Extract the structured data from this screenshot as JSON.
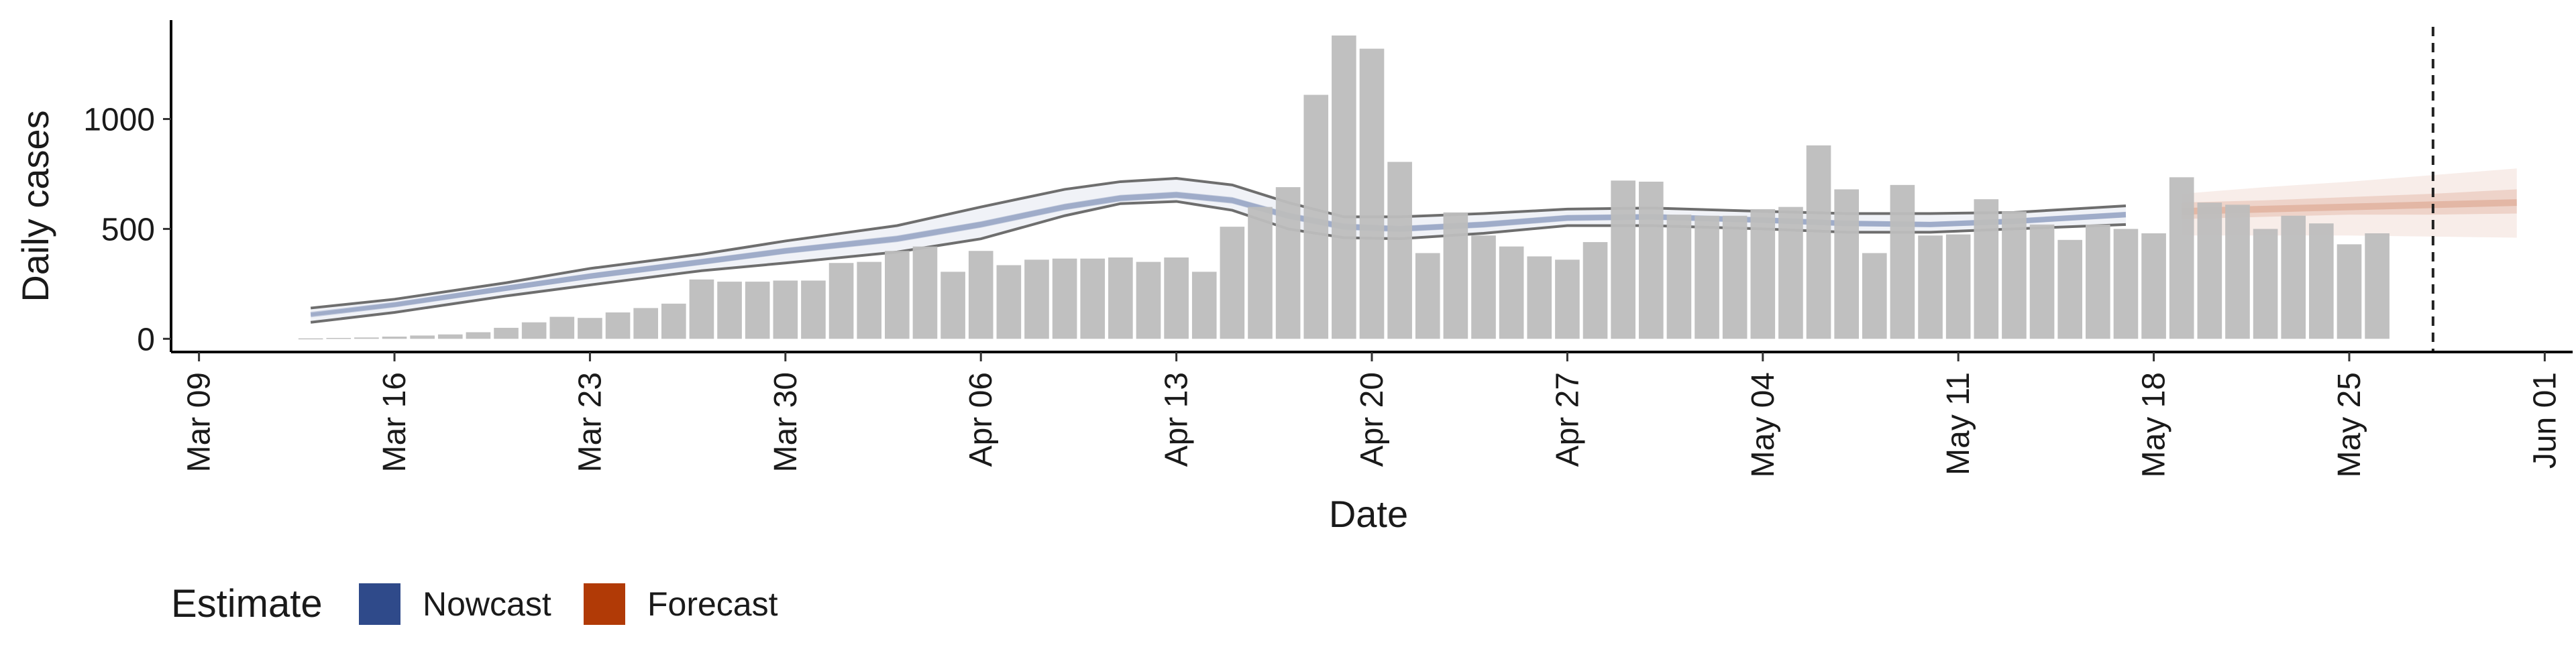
{
  "chart_data": {
    "type": "bar",
    "xlabel": "Date",
    "ylabel": "Daily cases",
    "x_ticks": [
      "Mar 09",
      "Mar 16",
      "Mar 23",
      "Mar 30",
      "Apr 06",
      "Apr 13",
      "Apr 20",
      "Apr 27",
      "May 04",
      "May 11",
      "May 18",
      "May 25",
      "Jun 01"
    ],
    "y_ticks": [
      "0",
      "500",
      "1000"
    ],
    "ylim": [
      -60,
      1450
    ],
    "xlim": [
      "2020-03-08",
      "2020-06-02"
    ],
    "grid": false,
    "legend_position": "bottom-left",
    "legend": {
      "title": "Estimate",
      "entries": [
        {
          "label": "Nowcast",
          "color": "#2f4a8a"
        },
        {
          "label": "Forecast",
          "color": "#b13a06"
        }
      ]
    },
    "colors": {
      "bar": "#bdbdbd",
      "nowcast": "#2f4a8a",
      "forecast": "#b13a06",
      "outer_line": "#6e6e6e",
      "cutoff_line": "#222222"
    },
    "cases": {
      "start_date": "2020-03-13",
      "values": [
        2,
        4,
        6,
        10,
        15,
        20,
        30,
        50,
        75,
        100,
        95,
        120,
        140,
        160,
        270,
        260,
        260,
        265,
        265,
        345,
        350,
        400,
        420,
        305,
        400,
        335,
        360,
        365,
        365,
        370,
        350,
        370,
        305,
        510,
        600,
        690,
        1110,
        1380,
        1320,
        805,
        390,
        575,
        470,
        420,
        375,
        360,
        440,
        720,
        715,
        565,
        560,
        560,
        590,
        600,
        880,
        680,
        390,
        700,
        470,
        475,
        635,
        580,
        520,
        450,
        520,
        500,
        480,
        735,
        620,
        610,
        500,
        560,
        525,
        430,
        480
      ],
      "bar_color": "#bdbdbd"
    },
    "nowcast": {
      "dates": [
        "2020-03-13",
        "2020-03-16",
        "2020-03-20",
        "2020-03-23",
        "2020-03-27",
        "2020-03-30",
        "2020-04-03",
        "2020-04-06",
        "2020-04-09",
        "2020-04-11",
        "2020-04-13",
        "2020-04-15",
        "2020-04-17",
        "2020-04-19",
        "2020-04-21",
        "2020-04-24",
        "2020-04-27",
        "2020-04-30",
        "2020-05-04",
        "2020-05-07",
        "2020-05-10",
        "2020-05-13",
        "2020-05-17"
      ],
      "median": [
        110,
        155,
        230,
        285,
        350,
        400,
        455,
        520,
        600,
        640,
        655,
        630,
        560,
        510,
        500,
        520,
        550,
        555,
        540,
        525,
        520,
        535,
        565
      ],
      "inner_lower": [
        102,
        145,
        218,
        272,
        336,
        386,
        440,
        505,
        585,
        625,
        640,
        615,
        545,
        495,
        486,
        506,
        536,
        542,
        527,
        512,
        508,
        522,
        552
      ],
      "inner_upper": [
        118,
        165,
        242,
        298,
        364,
        414,
        470,
        535,
        615,
        655,
        670,
        645,
        575,
        525,
        514,
        534,
        564,
        568,
        553,
        538,
        532,
        548,
        578
      ],
      "outer_lower": [
        75,
        120,
        195,
        245,
        310,
        345,
        395,
        455,
        560,
        615,
        625,
        585,
        500,
        460,
        455,
        480,
        515,
        515,
        500,
        485,
        485,
        500,
        520
      ],
      "outer_upper": [
        140,
        180,
        255,
        320,
        385,
        445,
        515,
        600,
        680,
        715,
        730,
        700,
        620,
        555,
        555,
        570,
        590,
        595,
        580,
        570,
        570,
        575,
        605
      ]
    },
    "forecast": {
      "dates": [
        "2020-05-19",
        "2020-05-22",
        "2020-05-25",
        "2020-05-28",
        "2020-05-31"
      ],
      "median": [
        580,
        590,
        600,
        610,
        620
      ],
      "inner_lower": [
        545,
        555,
        565,
        565,
        570
      ],
      "inner_upper": [
        620,
        630,
        645,
        660,
        680
      ],
      "outer_lower": [
        470,
        470,
        470,
        465,
        460
      ],
      "outer_upper": [
        660,
        690,
        715,
        745,
        775
      ]
    },
    "cutoff_date": "2020-05-28"
  }
}
